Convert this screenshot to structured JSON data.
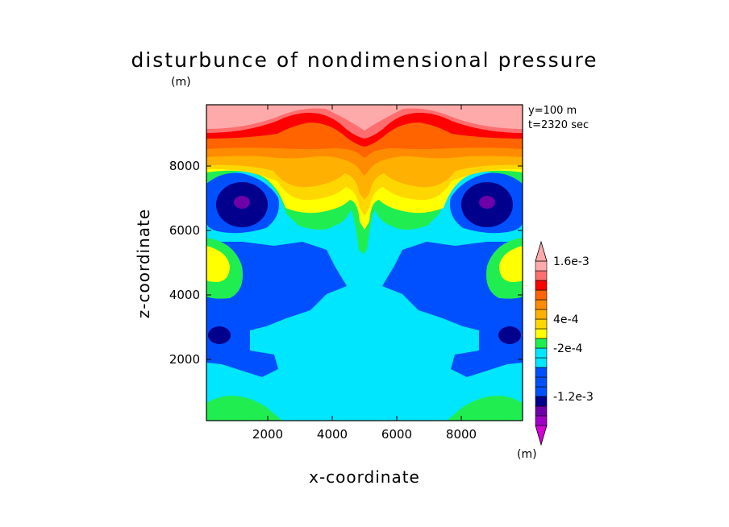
{
  "chart_data": {
    "type": "contour",
    "title": "disturbunce of nondimensional pressure",
    "xlabel": "x-coordinate",
    "ylabel": "z-coordinate",
    "y_unit": "(m)",
    "colorbar_unit": "(m)",
    "annotations": [
      "y=100 m",
      "t=2320 sec"
    ],
    "xlim": [
      100,
      9900
    ],
    "ylim": [
      100,
      9900
    ],
    "xticks": [
      2000,
      4000,
      6000,
      8000
    ],
    "yticks": [
      2000,
      4000,
      6000,
      8000
    ],
    "xtick_labels": [
      "2000",
      "4000",
      "6000",
      "8000"
    ],
    "ytick_labels": [
      "2000",
      "4000",
      "6000",
      "8000"
    ],
    "colorbar": {
      "levels_bottom_to_top": [
        "-1.8e-3",
        "-1.6e-3",
        "-1.4e-3",
        "-1.2e-3",
        "-1e-3",
        "-8e-4",
        "-6e-4",
        "-4e-4",
        "-2e-4",
        "0",
        "2e-4",
        "4e-4",
        "6e-4",
        "8e-4",
        "1e-3",
        "1.2e-3",
        "1.4e-3",
        "1.6e-3",
        "1.8e-3"
      ],
      "labeled_ticks": [
        {
          "level": "1.6e-3",
          "label": "1.6e-3"
        },
        {
          "level": "4e-4",
          "label": "4e-4"
        },
        {
          "level": "-2e-4",
          "label": "-2e-4"
        },
        {
          "level": "-1.2e-3",
          "label": "-1.2e-3"
        }
      ],
      "colors_bottom_to_top": [
        "#d400d4",
        "#a000c8",
        "#6e00aa",
        "#00008c",
        "#0050ff",
        "#0050ff",
        "#0050ff",
        "#00e6ff",
        "#00e6ff",
        "#20ee50",
        "#ffff00",
        "#ffd700",
        "#ffb000",
        "#ff8c00",
        "#ff6400",
        "#ff0000",
        "#ff6e6e",
        "#ffaaaa",
        "#ffaaaa"
      ],
      "extends": "both"
    }
  }
}
